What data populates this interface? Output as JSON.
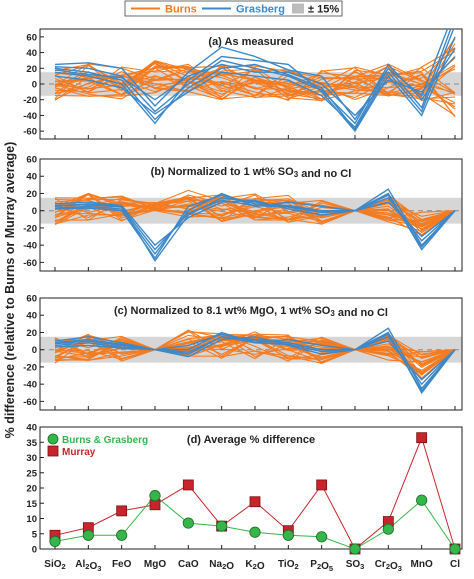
{
  "figure": {
    "ylabel": "% difference (relative to Burns or Murray average)",
    "legend": {
      "burns": "Burns",
      "grasberg": "Grasberg",
      "band": "± 15%"
    },
    "colors": {
      "burns": "#f47b20",
      "grasberg": "#3d88c8",
      "band": "#d6d6d6",
      "green": "#36b64a",
      "red": "#c8242b",
      "axis": "#222222"
    }
  },
  "chart_data": [
    {
      "panel": "a",
      "type": "line",
      "title": "(a) As measured",
      "categories": [
        "SiO2",
        "Al2O3",
        "FeO",
        "MgO",
        "CaO",
        "Na2O",
        "K2O",
        "TiO2",
        "P2O5",
        "SO3",
        "Cr2O3",
        "MnO",
        "Cl"
      ],
      "ylim": [
        -70,
        70
      ],
      "yticks": [
        -60,
        -40,
        -20,
        0,
        20,
        40,
        60
      ],
      "band": [
        -15,
        15
      ],
      "grasberg_series": [
        [
          25,
          27,
          20,
          -28,
          15,
          47,
          35,
          18,
          10,
          -45,
          20,
          -15,
          95
        ],
        [
          20,
          15,
          5,
          -45,
          -5,
          20,
          25,
          12,
          -5,
          -58,
          15,
          -35,
          75
        ],
        [
          15,
          10,
          0,
          -50,
          5,
          35,
          30,
          25,
          -10,
          -60,
          10,
          -40,
          60
        ],
        [
          22,
          20,
          10,
          -35,
          0,
          30,
          20,
          10,
          -8,
          -50,
          25,
          -20,
          45
        ],
        [
          18,
          12,
          8,
          -20,
          10,
          25,
          15,
          15,
          0,
          -40,
          5,
          -10,
          35
        ],
        [
          10,
          5,
          -5,
          -38,
          -10,
          15,
          10,
          5,
          -15,
          -55,
          20,
          -30,
          85
        ]
      ],
      "burns_pattern": [
        0,
        5,
        3,
        10,
        5,
        2,
        4,
        0,
        -3,
        0,
        5,
        0,
        35
      ],
      "burns_count": 24
    },
    {
      "panel": "b",
      "type": "line",
      "title": "(b) Normalized to 1 wt% SO3 and no Cl",
      "categories": [
        "SiO2",
        "Al2O3",
        "FeO",
        "MgO",
        "CaO",
        "Na2O",
        "K2O",
        "TiO2",
        "P2O5",
        "SO3",
        "Cr2O3",
        "MnO",
        "Cl"
      ],
      "ylim": [
        -70,
        60
      ],
      "yticks": [
        -60,
        -40,
        -20,
        0,
        20,
        40,
        60
      ],
      "band": [
        -15,
        15
      ],
      "grasberg_series": [
        [
          5,
          8,
          5,
          -58,
          -5,
          15,
          10,
          5,
          0,
          0,
          20,
          -45,
          0
        ],
        [
          3,
          5,
          2,
          -50,
          0,
          20,
          5,
          10,
          5,
          0,
          15,
          -35,
          0
        ],
        [
          8,
          10,
          6,
          -40,
          -8,
          10,
          12,
          2,
          -5,
          0,
          25,
          -40,
          0
        ],
        [
          2,
          3,
          0,
          -55,
          5,
          18,
          8,
          6,
          0,
          0,
          10,
          -30,
          0
        ],
        [
          6,
          7,
          4,
          -45,
          -3,
          12,
          6,
          4,
          -2,
          0,
          18,
          -42,
          0
        ]
      ],
      "burns_pattern": [
        0,
        5,
        2,
        5,
        8,
        3,
        5,
        2,
        0,
        0,
        3,
        -15,
        0
      ],
      "burns_count": 24
    },
    {
      "panel": "c",
      "type": "line",
      "title": "(c) Normalized to 8.1 wt% MgO, 1 wt% SO3 and no Cl",
      "categories": [
        "SiO2",
        "Al2O3",
        "FeO",
        "MgO",
        "CaO",
        "Na2O",
        "K2O",
        "TiO2",
        "P2O5",
        "SO3",
        "Cr2O3",
        "MnO",
        "Cl"
      ],
      "ylim": [
        -70,
        60
      ],
      "yticks": [
        -60,
        -40,
        -20,
        0,
        20,
        40,
        60
      ],
      "band": [
        -15,
        15
      ],
      "grasberg_series": [
        [
          8,
          12,
          6,
          0,
          -5,
          15,
          12,
          8,
          0,
          0,
          20,
          -50,
          0
        ],
        [
          5,
          8,
          3,
          0,
          0,
          20,
          8,
          12,
          5,
          0,
          15,
          -40,
          0
        ],
        [
          10,
          15,
          8,
          0,
          -8,
          12,
          15,
          5,
          -5,
          0,
          25,
          -45,
          0
        ],
        [
          3,
          5,
          2,
          0,
          5,
          18,
          10,
          8,
          0,
          0,
          10,
          -35,
          0
        ],
        [
          7,
          10,
          5,
          0,
          -3,
          15,
          8,
          6,
          -2,
          0,
          18,
          -48,
          0
        ]
      ],
      "burns_pattern": [
        0,
        3,
        2,
        0,
        8,
        3,
        5,
        2,
        0,
        0,
        3,
        -18,
        0
      ],
      "burns_count": 24
    },
    {
      "panel": "d",
      "type": "line",
      "title": "(d) Average % difference",
      "categories": [
        "SiO2",
        "Al2O3",
        "FeO",
        "MgO",
        "CaO",
        "Na2O",
        "K2O",
        "TiO2",
        "P2O5",
        "SO3",
        "Cr2O3",
        "MnO",
        "Cl"
      ],
      "ylim": [
        0,
        40
      ],
      "yticks": [
        0,
        5,
        10,
        15,
        20,
        25,
        30,
        35,
        40
      ],
      "series": [
        {
          "name": "Burns & Grasberg",
          "values": [
            2.5,
            4.5,
            4.5,
            17.5,
            8.5,
            7.5,
            5.5,
            4.5,
            4.0,
            0,
            6.5,
            16.0,
            0
          ]
        },
        {
          "name": "Murray",
          "values": [
            4.5,
            7.0,
            12.5,
            14.5,
            21.0,
            7.5,
            15.5,
            6.0,
            21.0,
            0,
            9.0,
            36.5,
            0
          ]
        }
      ]
    }
  ]
}
